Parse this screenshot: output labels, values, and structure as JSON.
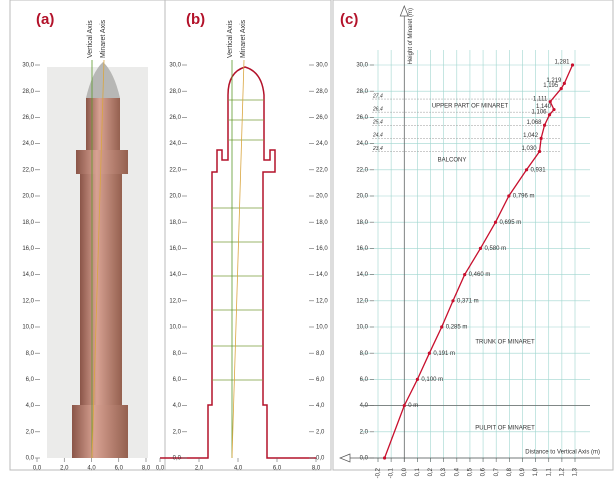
{
  "chart_data": [
    {
      "type": "image",
      "label": "(a)",
      "axis_labels": [
        "Vertical Axis",
        "Minaret Axis"
      ],
      "xlim": [
        0,
        8
      ],
      "ylim": [
        0,
        30
      ],
      "xticks": [
        {
          "value": 0,
          "label": "0,0"
        },
        {
          "value": 2,
          "label": "2,0"
        },
        {
          "value": 4,
          "label": "4,0"
        },
        {
          "value": 6,
          "label": "6,0"
        },
        {
          "value": 8,
          "label": "8,0"
        }
      ],
      "yticks": [
        {
          "value": 0,
          "label": "0,0"
        },
        {
          "value": 2,
          "label": "2,0"
        },
        {
          "value": 4,
          "label": "4,0"
        },
        {
          "value": 6,
          "label": "6,0"
        },
        {
          "value": 8,
          "label": "8,0"
        },
        {
          "value": 10,
          "label": "10,0"
        },
        {
          "value": 12,
          "label": "12,0"
        },
        {
          "value": 14,
          "label": "14,0"
        },
        {
          "value": 16,
          "label": "16,0"
        },
        {
          "value": 18,
          "label": "18,0"
        },
        {
          "value": 20,
          "label": "20,0"
        },
        {
          "value": 22,
          "label": "22,0"
        },
        {
          "value": 24,
          "label": "24,0"
        },
        {
          "value": 26,
          "label": "26,0"
        },
        {
          "value": 28,
          "label": "28,0"
        },
        {
          "value": 30,
          "label": "30,0"
        }
      ]
    },
    {
      "type": "outline",
      "label": "(b)",
      "axis_labels": [
        "Vertical Axis",
        "Minaret Axis"
      ],
      "xlim": [
        0,
        8
      ],
      "ylim": [
        0,
        30
      ],
      "xticks": [
        {
          "value": 0,
          "label": "0,0"
        },
        {
          "value": 2,
          "label": "2,0"
        },
        {
          "value": 4,
          "label": "4,0"
        },
        {
          "value": 6,
          "label": "6,0"
        },
        {
          "value": 8,
          "label": "8,0"
        }
      ],
      "yticks": [
        {
          "value": 0,
          "label": "0,0"
        },
        {
          "value": 2,
          "label": "2,0"
        },
        {
          "value": 4,
          "label": "4,0"
        },
        {
          "value": 6,
          "label": "6,0"
        },
        {
          "value": 8,
          "label": "8,0"
        },
        {
          "value": 10,
          "label": "10,0"
        },
        {
          "value": 12,
          "label": "12,0"
        },
        {
          "value": 14,
          "label": "14,0"
        },
        {
          "value": 16,
          "label": "16,0"
        },
        {
          "value": 18,
          "label": "18,0"
        },
        {
          "value": 20,
          "label": "20,0"
        },
        {
          "value": 22,
          "label": "22,0"
        },
        {
          "value": 24,
          "label": "24,0"
        },
        {
          "value": 26,
          "label": "26,0"
        },
        {
          "value": 28,
          "label": "28,0"
        },
        {
          "value": 30,
          "label": "30,0"
        }
      ]
    },
    {
      "type": "line",
      "label": "(c)",
      "y_label": "Height of Minaret (m)",
      "x_label": "Distance to Vertical Axis (m)",
      "annotations": [
        "UPPER PART OF MINARET",
        "BALCONY",
        "TRUNK OF MINARET",
        "PULPIT OF MINARET"
      ],
      "xlim": [
        -0.2,
        1.3
      ],
      "ylim": [
        0,
        30
      ],
      "grid": true,
      "xticks": [
        {
          "value": -0.2,
          "label": "-0,2"
        },
        {
          "value": -0.1,
          "label": "-0,1"
        },
        {
          "value": 0,
          "label": "0,0"
        },
        {
          "value": 0.1,
          "label": "0,1"
        },
        {
          "value": 0.2,
          "label": "0,2"
        },
        {
          "value": 0.3,
          "label": "0,3"
        },
        {
          "value": 0.4,
          "label": "0,4"
        },
        {
          "value": 0.5,
          "label": "0,5"
        },
        {
          "value": 0.6,
          "label": "0,6"
        },
        {
          "value": 0.7,
          "label": "0,7"
        },
        {
          "value": 0.8,
          "label": "0,8"
        },
        {
          "value": 0.9,
          "label": "0,9"
        },
        {
          "value": 1.0,
          "label": "1,0"
        },
        {
          "value": 1.1,
          "label": "1,1"
        },
        {
          "value": 1.2,
          "label": "1,2"
        },
        {
          "value": 1.3,
          "label": "1,3"
        }
      ],
      "yticks": [
        {
          "value": 0,
          "label": "0,0"
        },
        {
          "value": 2,
          "label": "2,0"
        },
        {
          "value": 4,
          "label": "4,0"
        },
        {
          "value": 6,
          "label": "6,0"
        },
        {
          "value": 8,
          "label": "8,0"
        },
        {
          "value": 10,
          "label": "10,0"
        },
        {
          "value": 12,
          "label": "12,0"
        },
        {
          "value": 14,
          "label": "14,0"
        },
        {
          "value": 16,
          "label": "16,0"
        },
        {
          "value": 18,
          "label": "18,0"
        },
        {
          "value": 20,
          "label": "20,0"
        },
        {
          "value": 22,
          "label": "22,0"
        },
        {
          "value": 24,
          "label": "24,0"
        },
        {
          "value": 26,
          "label": "26,0"
        },
        {
          "value": 28,
          "label": "28,0"
        },
        {
          "value": 30,
          "label": "30,0"
        }
      ],
      "levels": [
        {
          "value": 27.4,
          "label": "27,4"
        },
        {
          "value": 26.4,
          "label": "26,4"
        },
        {
          "value": 25.4,
          "label": "25,4"
        },
        {
          "value": 24.4,
          "label": "24,4"
        },
        {
          "value": 23.4,
          "label": "23,4"
        }
      ],
      "series": [
        {
          "color": "#c8102e",
          "x": [
            -0.15,
            0,
            0.1,
            0.191,
            0.285,
            0.371,
            0.46,
            0.58,
            0.695,
            0.796,
            0.931,
            1.03,
            1.042,
            1.068,
            1.106,
            1.14,
            1.111,
            1.195,
            1.219,
            1.281
          ],
          "values": [
            0,
            4,
            6,
            8,
            10,
            12,
            14,
            16,
            18,
            20,
            22,
            23.4,
            24.4,
            25.4,
            26.2,
            26.6,
            27.2,
            28.2,
            28.6,
            30
          ],
          "value_labels": [
            null,
            "0 m",
            "0,100 m",
            "0,191 m",
            "0,285 m",
            "0,371 m",
            "0,460 m",
            "0,580 m",
            "0,695 m",
            "0,796 m",
            "0,931",
            "1,030",
            "1,042",
            "1,068",
            "1,106",
            "1,140",
            "1,111",
            "1,195",
            "1,219",
            "1,281"
          ]
        }
      ]
    }
  ]
}
